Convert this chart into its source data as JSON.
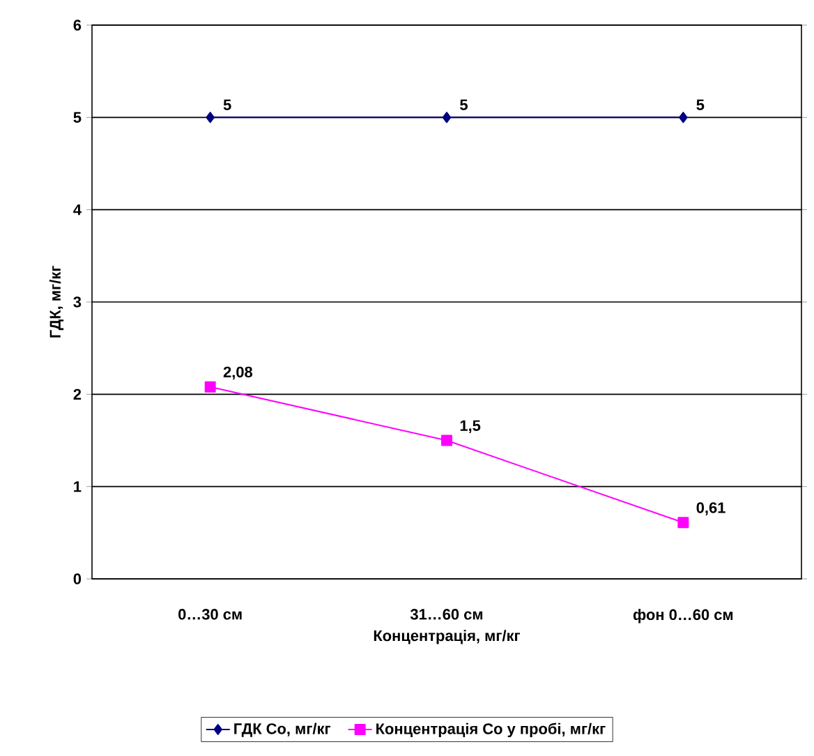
{
  "chart_data": {
    "type": "line",
    "xlabel": "Концентрація, мг/кг",
    "ylabel": "ГДК, мг/кг",
    "categories": [
      "0…30 см",
      "31…60 см",
      "фон 0…60 см"
    ],
    "series": [
      {
        "name": "ГДК Co, мг/кг",
        "color": "#000080",
        "marker": "diamond",
        "values": [
          5,
          5,
          5
        ],
        "value_labels": [
          "5",
          "5",
          "5"
        ]
      },
      {
        "name": "Концентрація Co у пробі, мг/кг",
        "color": "#ff00ff",
        "marker": "square",
        "values": [
          2.08,
          1.5,
          0.61
        ],
        "value_labels": [
          "2,08",
          "1,5",
          "0,61"
        ]
      }
    ],
    "ylim": [
      0,
      6
    ],
    "yticks": [
      0,
      1,
      2,
      3,
      4,
      5,
      6
    ],
    "grid": "y",
    "legend": "bottom"
  }
}
